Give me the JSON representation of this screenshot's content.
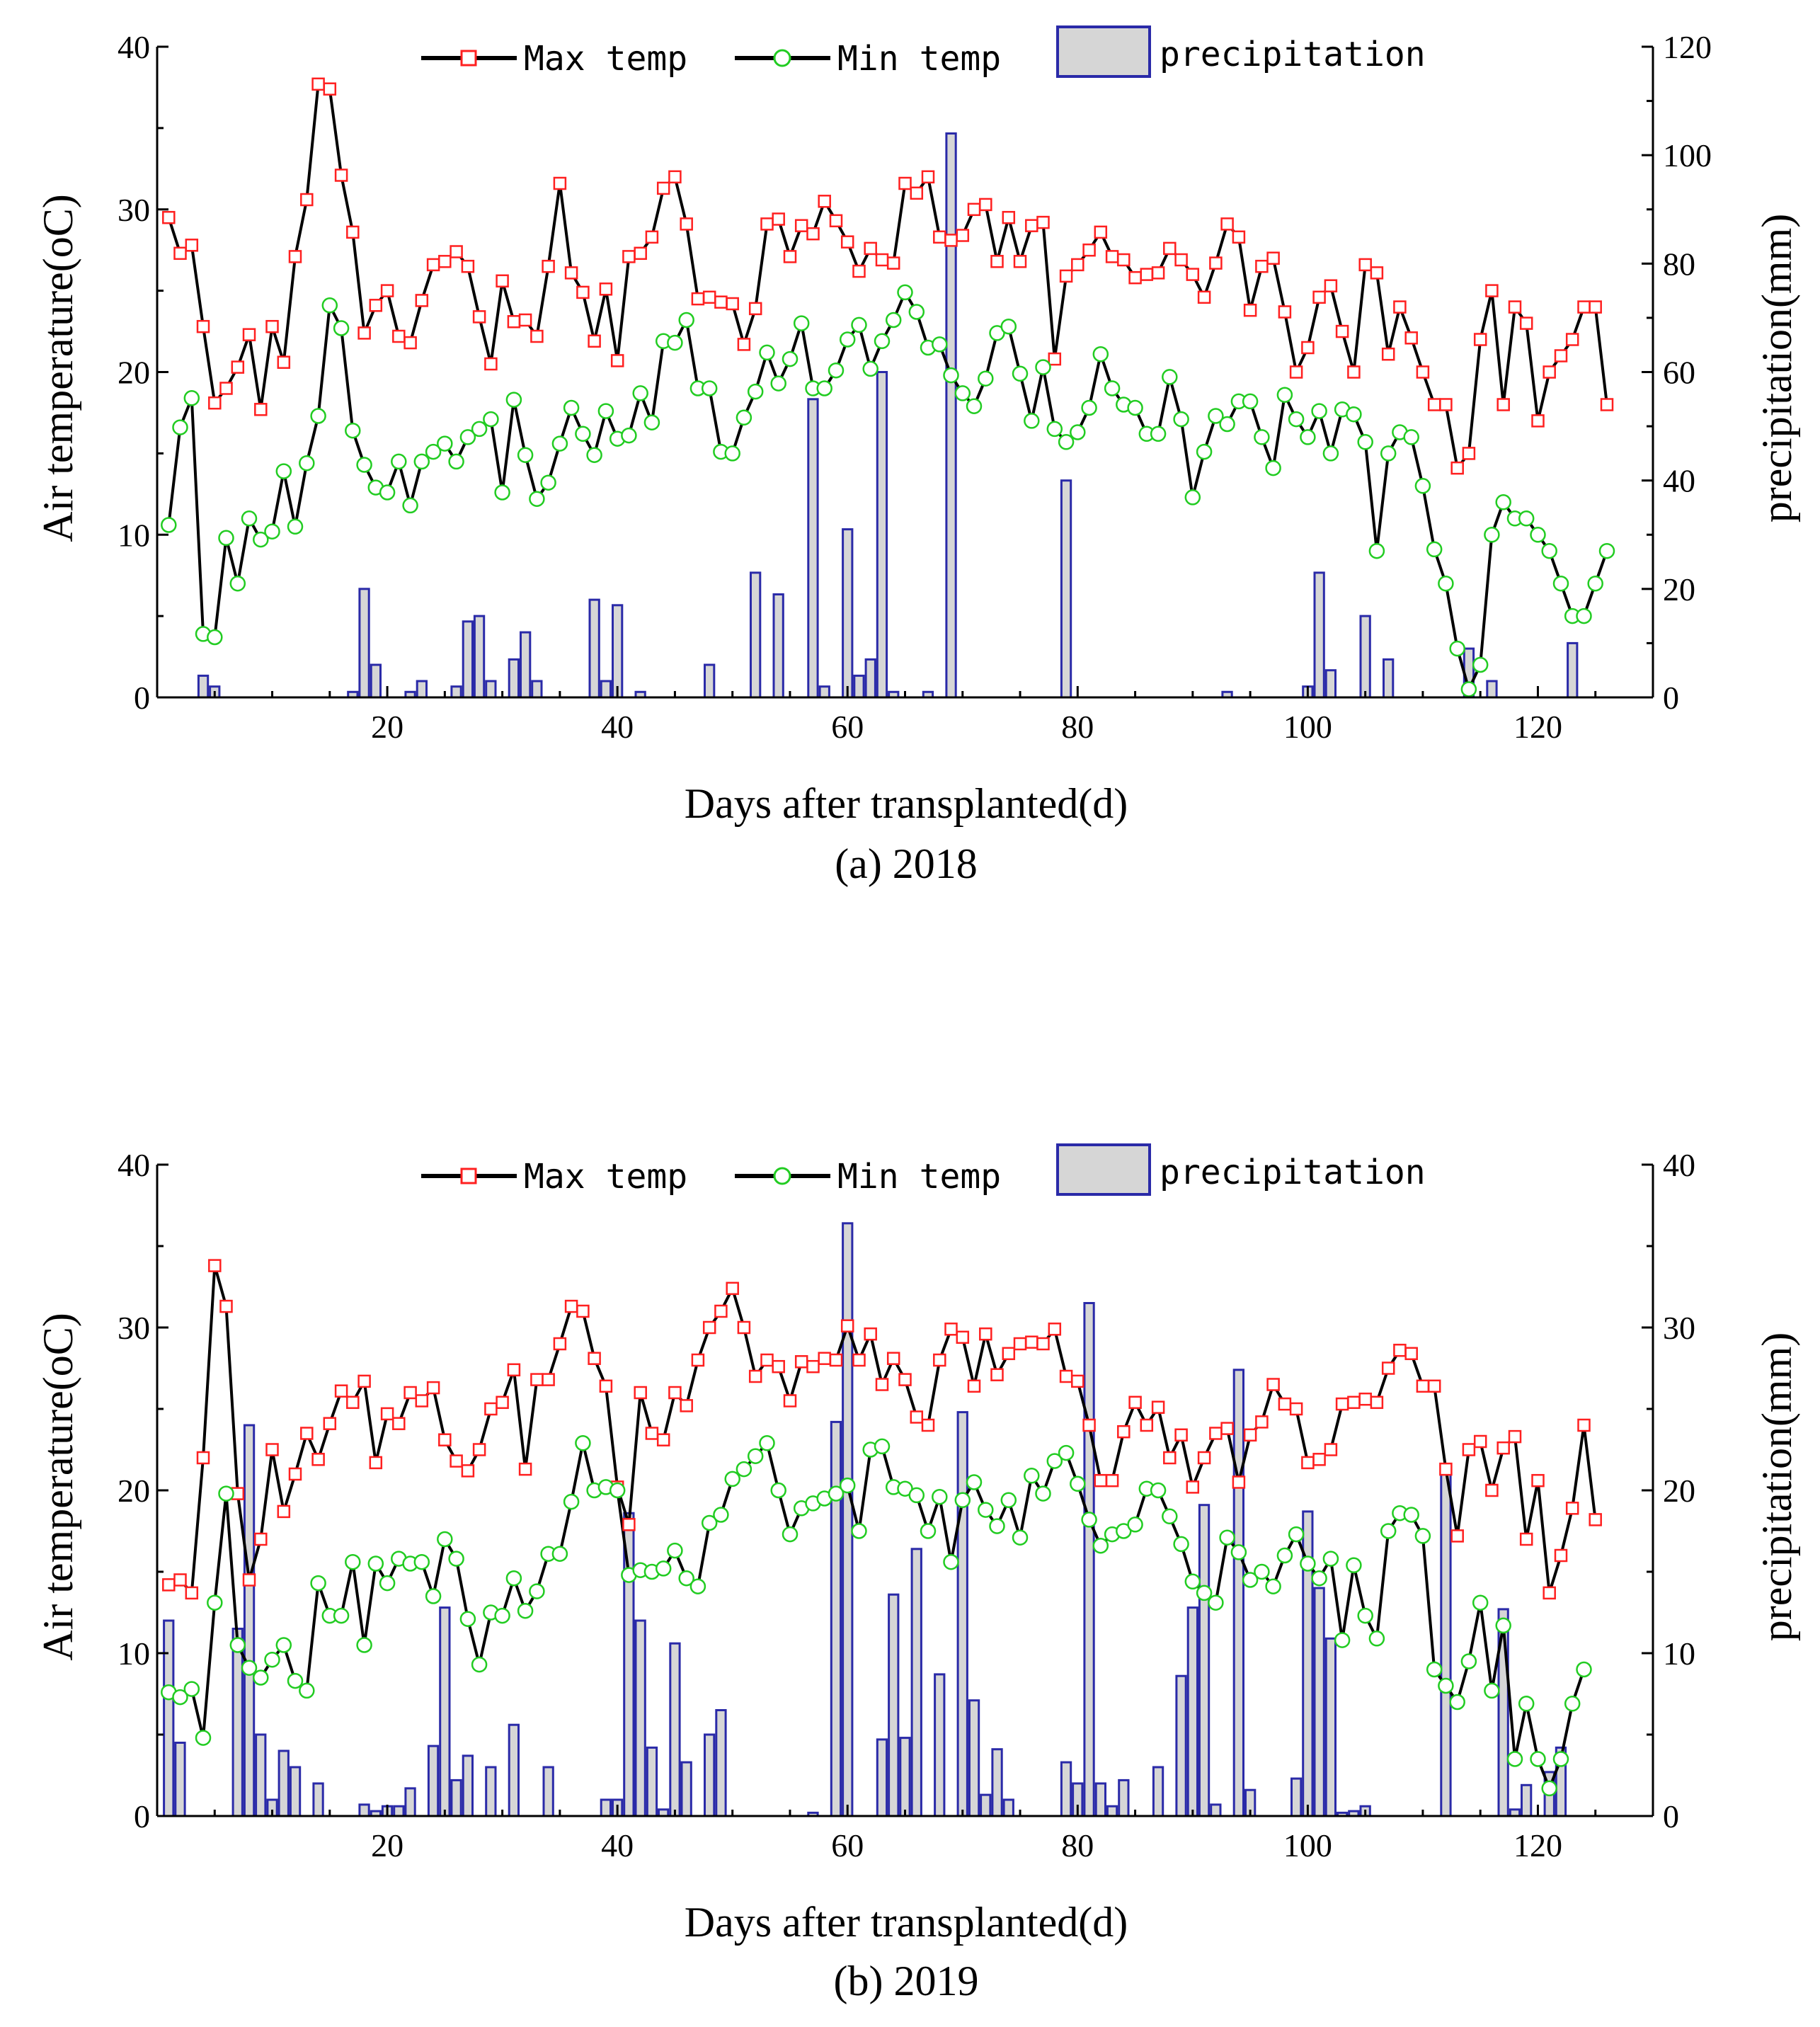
{
  "colors": {
    "max": "#ff2020",
    "min": "#22cc22",
    "line": "#000000",
    "barStroke": "#2a2aa8",
    "barFill": "#d6d6d6"
  },
  "legend": {
    "max_label": "Max temp",
    "min_label": "Min temp",
    "precip_label": "precipitation"
  },
  "chart_data": [
    {
      "type": "line+bar",
      "caption": "(a)  2018",
      "xlabel": "Days after transplanted(d)",
      "ylabel_left": "Air temperature(oC)",
      "ylabel_right": "precipitation(mm)",
      "xlim": [
        0,
        130
      ],
      "ylim_left": [
        0,
        40
      ],
      "ylim_right": [
        0,
        120
      ],
      "x_ticks": [
        "20",
        "40",
        "60",
        "80",
        "100",
        "120"
      ],
      "y_left_ticks": [
        "0",
        "10",
        "20",
        "30",
        "40"
      ],
      "y_right_ticks": [
        "0",
        "20",
        "40",
        "60",
        "80",
        "100",
        "120"
      ],
      "series": [
        {
          "name": "Max temp",
          "values": [
            29.5,
            27.3,
            27.8,
            22.8,
            18.1,
            19.0,
            20.3,
            22.3,
            17.7,
            22.8,
            20.6,
            27.1,
            30.6,
            37.7,
            37.4,
            32.1,
            28.6,
            22.4,
            24.1,
            25.0,
            22.2,
            21.8,
            24.4,
            26.6,
            26.8,
            27.4,
            26.5,
            23.4,
            20.5,
            25.6,
            23.1,
            23.2,
            22.2,
            26.5,
            31.6,
            26.1,
            24.9,
            21.9,
            25.1,
            20.7,
            27.1,
            27.3,
            28.3,
            31.3,
            32.0,
            29.1,
            24.5,
            24.6,
            24.3,
            24.2,
            21.7,
            23.9,
            29.1,
            29.4,
            27.1,
            29.0,
            28.5,
            30.5,
            29.3,
            28.0,
            26.2,
            27.6,
            26.9,
            26.7,
            31.6,
            31.0,
            32.0,
            28.3,
            28.1,
            28.4,
            30.0,
            30.3,
            26.8,
            29.5,
            26.8,
            29.0,
            29.2,
            20.8,
            25.9,
            26.6,
            27.5,
            28.6,
            27.1,
            26.9,
            25.8,
            26.0,
            26.1,
            27.6,
            26.9,
            26.0,
            24.6,
            26.7,
            29.1,
            28.3,
            23.8,
            26.5,
            27.0,
            23.7,
            20.0,
            21.5,
            24.6,
            25.3,
            22.5,
            20.0,
            26.6,
            26.1,
            21.1,
            24.0,
            22.1,
            20.0,
            18.0,
            18.0,
            14.1,
            15.0,
            22.0,
            25.0,
            18.0,
            24.0,
            23.0,
            17.0,
            20.0,
            21.0,
            22.0,
            24.0,
            24.0,
            18.0
          ]
        },
        {
          "name": "Min temp",
          "values": [
            10.6,
            16.6,
            18.4,
            3.9,
            3.7,
            9.8,
            7.0,
            11.0,
            9.7,
            10.2,
            13.9,
            10.5,
            14.4,
            17.3,
            24.1,
            22.7,
            16.4,
            14.3,
            12.9,
            12.6,
            14.5,
            11.8,
            14.5,
            15.1,
            15.6,
            14.5,
            16.0,
            16.5,
            17.1,
            12.6,
            18.3,
            14.9,
            12.2,
            13.2,
            15.6,
            17.8,
            16.2,
            14.9,
            17.6,
            15.9,
            16.1,
            18.7,
            16.9,
            21.9,
            21.8,
            23.2,
            19.0,
            19.0,
            15.1,
            15.0,
            17.2,
            18.8,
            21.2,
            19.3,
            20.8,
            23.0,
            19.0,
            19.0,
            20.1,
            22.0,
            22.9,
            20.2,
            21.9,
            23.2,
            24.9,
            23.7,
            21.5,
            21.7,
            19.8,
            18.7,
            17.9,
            19.6,
            22.4,
            22.8,
            19.9,
            17.0,
            20.3,
            16.5,
            15.7,
            16.3,
            17.8,
            21.1,
            19.0,
            18.0,
            17.8,
            16.2,
            16.2,
            19.7,
            17.1,
            12.3,
            15.1,
            17.3,
            16.8,
            18.2,
            18.2,
            16.0,
            14.1,
            18.6,
            17.1,
            16.0,
            17.6,
            15.0,
            17.7,
            17.4,
            15.7,
            9.0,
            15.0,
            16.3,
            16.0,
            13.0,
            9.1,
            7.0,
            3.0,
            0.5,
            2.0,
            10.0,
            12.0,
            11.0,
            11.0,
            10.0,
            9.0,
            7.0,
            5.0,
            5.0,
            7.0,
            9.0
          ]
        },
        {
          "name": "precipitation",
          "values": [
            0,
            0,
            0,
            4,
            2,
            0,
            0,
            0,
            0,
            0,
            0,
            0,
            0,
            0,
            0,
            0,
            1,
            20,
            6,
            0,
            0,
            1,
            3,
            0,
            0,
            2,
            14,
            15,
            3,
            0,
            7,
            12,
            3,
            0,
            0,
            0,
            0,
            18,
            3,
            17,
            0,
            1,
            0,
            0,
            0,
            0,
            0,
            6,
            0,
            0,
            0,
            23,
            0,
            19,
            0,
            0,
            55,
            2,
            0,
            31,
            4,
            7,
            60,
            1,
            0,
            0,
            1,
            0,
            104,
            0,
            0,
            0,
            0,
            0,
            0,
            0,
            0,
            0,
            40,
            0,
            0,
            0,
            0,
            0,
            0,
            0,
            0,
            0,
            0,
            0,
            0,
            0,
            1,
            0,
            0,
            0,
            0,
            0,
            0,
            2,
            23,
            5,
            0,
            0,
            15,
            0,
            7,
            0,
            0,
            0,
            0,
            0,
            0,
            9,
            0,
            3,
            0,
            0,
            0,
            0,
            0,
            0,
            10,
            0,
            0,
            0
          ]
        }
      ]
    },
    {
      "type": "line+bar",
      "caption": "(b)  2019",
      "xlabel": "Days after transplanted(d)",
      "ylabel_left": "Air temperature(oC)",
      "ylabel_right": "precipitation(mm)",
      "xlim": [
        0,
        130
      ],
      "ylim_left": [
        0,
        40
      ],
      "ylim_right": [
        0,
        40
      ],
      "x_ticks": [
        "20",
        "40",
        "60",
        "80",
        "100",
        "120"
      ],
      "y_left_ticks": [
        "0",
        "10",
        "20",
        "30",
        "40"
      ],
      "y_right_ticks": [
        "0",
        "10",
        "20",
        "30",
        "40"
      ],
      "series": [
        {
          "name": "Max temp",
          "values": [
            14.2,
            14.5,
            13.7,
            22.0,
            33.8,
            31.3,
            19.8,
            14.5,
            17.0,
            22.5,
            18.7,
            21.0,
            23.5,
            21.9,
            24.1,
            26.1,
            25.4,
            26.7,
            21.7,
            24.7,
            24.1,
            26.0,
            25.5,
            26.3,
            23.1,
            21.8,
            21.2,
            22.5,
            25.0,
            25.4,
            27.4,
            21.3,
            26.8,
            26.8,
            29.0,
            31.3,
            31.0,
            28.1,
            26.4,
            20.2,
            17.9,
            26.0,
            23.5,
            23.1,
            26.0,
            25.2,
            28.0,
            30.0,
            31.0,
            32.4,
            30.0,
            27.0,
            28.0,
            27.6,
            25.5,
            27.9,
            27.6,
            28.1,
            28.0,
            30.1,
            28.0,
            29.6,
            26.5,
            28.1,
            26.8,
            24.5,
            24.0,
            28.0,
            29.9,
            29.4,
            26.4,
            29.6,
            27.1,
            28.4,
            29.0,
            29.1,
            29.0,
            29.9,
            27.0,
            26.7,
            24.0,
            20.6,
            20.6,
            23.6,
            25.4,
            24.0,
            25.1,
            22.0,
            23.4,
            20.2,
            22.0,
            23.5,
            23.8,
            20.5,
            23.4,
            24.2,
            26.5,
            25.3,
            25.0,
            21.7,
            21.9,
            22.5,
            25.3,
            25.4,
            25.6,
            25.4,
            27.5,
            28.6,
            28.4,
            26.4,
            26.4,
            21.3,
            17.2,
            22.5,
            23.0,
            20.0,
            22.6,
            23.3,
            17.0,
            20.6,
            13.7,
            16.0,
            18.9,
            24.0,
            18.2
          ]
        },
        {
          "name": "Min temp",
          "values": [
            7.6,
            7.3,
            7.8,
            4.8,
            13.1,
            19.8,
            10.5,
            9.1,
            8.5,
            9.6,
            10.5,
            8.3,
            7.7,
            14.3,
            12.3,
            12.3,
            15.6,
            10.5,
            15.5,
            14.3,
            15.8,
            15.5,
            15.6,
            13.5,
            17.0,
            15.8,
            12.1,
            9.3,
            12.5,
            12.3,
            14.6,
            12.6,
            13.8,
            16.1,
            16.1,
            19.3,
            22.9,
            20.0,
            20.2,
            20.0,
            14.8,
            15.1,
            15.0,
            15.2,
            16.3,
            14.6,
            14.1,
            18.0,
            18.5,
            20.7,
            21.3,
            22.1,
            22.9,
            20.0,
            17.3,
            18.9,
            19.2,
            19.5,
            19.8,
            20.3,
            17.5,
            22.5,
            22.7,
            20.2,
            20.1,
            19.7,
            17.5,
            19.6,
            15.6,
            19.4,
            20.5,
            18.8,
            17.8,
            19.4,
            17.1,
            20.9,
            19.8,
            21.8,
            22.3,
            20.4,
            18.2,
            16.6,
            17.3,
            17.5,
            17.9,
            20.1,
            20.0,
            18.4,
            16.7,
            14.4,
            13.7,
            13.1,
            17.1,
            16.2,
            14.5,
            15.0,
            14.1,
            16.0,
            17.3,
            15.5,
            14.6,
            15.8,
            10.8,
            15.4,
            12.3,
            10.9,
            17.5,
            18.6,
            18.5,
            17.2,
            9.0,
            8.0,
            7.0,
            9.5,
            13.1,
            7.7,
            11.7,
            3.5,
            6.9,
            3.5,
            1.7,
            3.5,
            6.9,
            9.0
          ]
        },
        {
          "name": "precipitation",
          "values": [
            12,
            4.5,
            0,
            0,
            0,
            0,
            11.5,
            24,
            5,
            1,
            4,
            3,
            0,
            2,
            0,
            0,
            0,
            0.7,
            0.3,
            0.6,
            0.6,
            1.7,
            0,
            4.3,
            12.8,
            2.2,
            3.7,
            0,
            3,
            0,
            5.6,
            0,
            0,
            3,
            0,
            0,
            0,
            0,
            1,
            1,
            18.6,
            12,
            4.2,
            0.4,
            10.6,
            3.3,
            0,
            5,
            6.5,
            0,
            0,
            0,
            0,
            0,
            0,
            0,
            0.2,
            0,
            24.2,
            36.4,
            0,
            0,
            4.7,
            13.6,
            4.8,
            16.4,
            0,
            8.7,
            0,
            24.8,
            7.1,
            1.3,
            4.1,
            1,
            0,
            0,
            0,
            0,
            3.3,
            2,
            31.5,
            2,
            0.6,
            2.2,
            0,
            0,
            3,
            0,
            8.6,
            12.8,
            19.1,
            0.7,
            0,
            27.4,
            1.6,
            0,
            0,
            0,
            2.3,
            18.7,
            14,
            10.9,
            0.2,
            0.3,
            0.6,
            0,
            0,
            0,
            0,
            0,
            0,
            21.6,
            0,
            0,
            0,
            0,
            12.7,
            0.4,
            1.9,
            0,
            2.7,
            4.2,
            0,
            0,
            0,
            0,
            0
          ]
        }
      ]
    }
  ]
}
